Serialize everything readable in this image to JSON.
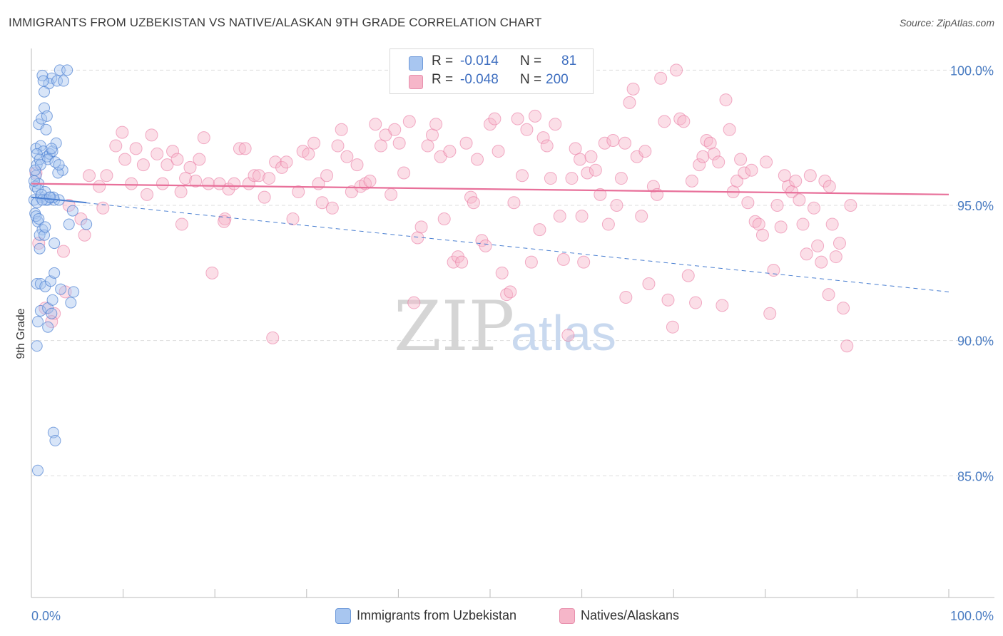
{
  "title": "IMMIGRANTS FROM UZBEKISTAN VS NATIVE/ALASKAN 9TH GRADE CORRELATION CHART",
  "source": "Source: ZipAtlas.com",
  "watermark": {
    "zip": "ZIP",
    "atlas": "atlas"
  },
  "legend_box": {
    "rows": [
      {
        "r_label": "R =",
        "r_value": "-0.014",
        "n_label": "N =",
        "n_value": "81",
        "color": "#a8c6f0"
      },
      {
        "r_label": "R =",
        "r_value": "-0.048",
        "n_label": "N =",
        "n_value": "200",
        "color": "#f6b6c9"
      }
    ]
  },
  "bottom_legend": [
    {
      "label": "Immigrants from Uzbekistan",
      "color": "#a8c6f0"
    },
    {
      "label": "Natives/Alaskans",
      "color": "#f6b6c9"
    }
  ],
  "colors": {
    "blue": "#4a7fd1",
    "blue_fill": "#a8c6f0",
    "pink": "#e8709a",
    "pink_fill": "#f6b6c9",
    "grid": "#dddddd",
    "axis_text": "#4a7cc2"
  },
  "chart_data": {
    "type": "scatter",
    "title": "IMMIGRANTS FROM UZBEKISTAN VS NATIVE/ALASKAN 9TH GRADE CORRELATION CHART",
    "xlabel": "",
    "ylabel": "9th Grade",
    "xlim": [
      0,
      100
    ],
    "ylim": [
      80.5,
      100.8
    ],
    "x_ticks": [
      "0.0%",
      "100.0%"
    ],
    "y_ticks": [
      {
        "value": 100,
        "label": "100.0%"
      },
      {
        "value": 95,
        "label": "95.0%"
      },
      {
        "value": 90,
        "label": "90.0%"
      },
      {
        "value": 85,
        "label": "85.0%"
      }
    ],
    "grid": true,
    "legend_position": "top-center",
    "series": [
      {
        "name": "Immigrants from Uzbekistan",
        "color": "#4a7fd1",
        "trend": {
          "x": [
            0,
            100
          ],
          "y": [
            95.3,
            91.8
          ],
          "style": "dashed"
        },
        "trend_solid": {
          "x": [
            0,
            6
          ],
          "y": [
            95.3,
            95.1
          ]
        },
        "points": [
          [
            0.3,
            95.2
          ],
          [
            0.5,
            96.1
          ],
          [
            0.6,
            96.5
          ],
          [
            0.8,
            95.8
          ],
          [
            1.0,
            95.3
          ],
          [
            0.4,
            94.7
          ],
          [
            0.7,
            94.4
          ],
          [
            1.2,
            94.1
          ],
          [
            0.9,
            93.9
          ],
          [
            1.5,
            95.5
          ],
          [
            1.8,
            95.2
          ],
          [
            2.1,
            95.3
          ],
          [
            2.5,
            95.2
          ],
          [
            3.0,
            95.2
          ],
          [
            0.5,
            97.1
          ],
          [
            1.0,
            97.2
          ],
          [
            1.3,
            97.0
          ],
          [
            1.7,
            96.8
          ],
          [
            2.0,
            96.9
          ],
          [
            2.3,
            97.0
          ],
          [
            2.7,
            97.3
          ],
          [
            0.8,
            98.0
          ],
          [
            1.1,
            98.2
          ],
          [
            1.4,
            98.6
          ],
          [
            1.6,
            97.8
          ],
          [
            2.2,
            99.7
          ],
          [
            1.9,
            99.5
          ],
          [
            1.4,
            99.2
          ],
          [
            1.2,
            99.8
          ],
          [
            2.8,
            99.6
          ],
          [
            3.1,
            100.0
          ],
          [
            3.9,
            100.0
          ],
          [
            0.6,
            96.9
          ],
          [
            0.9,
            96.7
          ],
          [
            1.8,
            96.7
          ],
          [
            2.6,
            96.6
          ],
          [
            3.4,
            96.3
          ],
          [
            2.9,
            96.2
          ],
          [
            0.4,
            95.7
          ],
          [
            0.7,
            95.6
          ],
          [
            1.1,
            95.4
          ],
          [
            1.6,
            95.2
          ],
          [
            2.4,
            95.3
          ],
          [
            0.5,
            94.6
          ],
          [
            0.8,
            94.5
          ],
          [
            3.0,
            96.5
          ],
          [
            4.1,
            94.3
          ],
          [
            4.5,
            94.8
          ],
          [
            6.0,
            94.3
          ],
          [
            1.4,
            93.9
          ],
          [
            2.5,
            93.6
          ],
          [
            0.6,
            92.1
          ],
          [
            1.0,
            92.1
          ],
          [
            1.5,
            92.0
          ],
          [
            2.1,
            92.2
          ],
          [
            2.5,
            92.5
          ],
          [
            3.2,
            91.9
          ],
          [
            4.6,
            91.8
          ],
          [
            4.3,
            91.4
          ],
          [
            1.0,
            91.1
          ],
          [
            1.8,
            91.2
          ],
          [
            2.2,
            91.0
          ],
          [
            0.7,
            90.7
          ],
          [
            1.8,
            90.5
          ],
          [
            0.6,
            89.8
          ],
          [
            2.4,
            86.6
          ],
          [
            2.6,
            86.3
          ],
          [
            0.7,
            85.2
          ],
          [
            0.3,
            95.9
          ],
          [
            0.6,
            95.1
          ],
          [
            1.2,
            95.2
          ],
          [
            2.0,
            95.3
          ],
          [
            1.0,
            96.5
          ],
          [
            1.5,
            94.2
          ],
          [
            0.9,
            93.4
          ],
          [
            2.3,
            91.5
          ],
          [
            1.7,
            98.3
          ],
          [
            2.2,
            97.1
          ],
          [
            1.3,
            99.6
          ],
          [
            3.5,
            99.6
          ],
          [
            0.4,
            96.3
          ]
        ]
      },
      {
        "name": "Natives/Alaskans",
        "color": "#e8709a",
        "trend": {
          "x": [
            0,
            100
          ],
          "y": [
            95.8,
            95.4
          ],
          "style": "solid"
        },
        "points": [
          [
            0.5,
            96.2
          ],
          [
            0.8,
            93.6
          ],
          [
            1.5,
            91.2
          ],
          [
            2.5,
            91.0
          ],
          [
            2.2,
            90.7
          ],
          [
            3.7,
            91.8
          ],
          [
            3.5,
            93.3
          ],
          [
            4.1,
            95.0
          ],
          [
            5.4,
            94.5
          ],
          [
            5.8,
            93.9
          ],
          [
            6.3,
            96.1
          ],
          [
            7.4,
            95.7
          ],
          [
            7.8,
            94.9
          ],
          [
            8.2,
            96.1
          ],
          [
            9.2,
            97.2
          ],
          [
            9.9,
            97.7
          ],
          [
            10.2,
            96.7
          ],
          [
            10.9,
            95.8
          ],
          [
            11.4,
            97.1
          ],
          [
            12.2,
            96.5
          ],
          [
            12.6,
            95.4
          ],
          [
            13.1,
            97.6
          ],
          [
            13.7,
            96.9
          ],
          [
            14.3,
            95.8
          ],
          [
            14.8,
            96.5
          ],
          [
            15.4,
            97.0
          ],
          [
            15.9,
            96.7
          ],
          [
            16.3,
            95.5
          ],
          [
            16.8,
            96.0
          ],
          [
            17.3,
            96.4
          ],
          [
            17.9,
            95.9
          ],
          [
            18.3,
            96.7
          ],
          [
            18.8,
            97.5
          ],
          [
            19.3,
            95.8
          ],
          [
            19.7,
            92.5
          ],
          [
            20.5,
            95.8
          ],
          [
            21.1,
            94.5
          ],
          [
            21.5,
            95.6
          ],
          [
            22.1,
            95.8
          ],
          [
            22.7,
            97.1
          ],
          [
            23.3,
            97.1
          ],
          [
            23.7,
            95.8
          ],
          [
            24.3,
            96.1
          ],
          [
            24.8,
            96.1
          ],
          [
            25.4,
            95.3
          ],
          [
            25.9,
            96.0
          ],
          [
            26.3,
            90.1
          ],
          [
            26.6,
            96.6
          ],
          [
            27.3,
            96.4
          ],
          [
            27.8,
            96.6
          ],
          [
            28.5,
            94.5
          ],
          [
            29.1,
            95.5
          ],
          [
            29.6,
            97.0
          ],
          [
            30.2,
            96.9
          ],
          [
            30.8,
            97.3
          ],
          [
            31.3,
            95.8
          ],
          [
            31.7,
            95.1
          ],
          [
            32.2,
            96.1
          ],
          [
            32.8,
            94.9
          ],
          [
            33.4,
            97.2
          ],
          [
            33.8,
            97.8
          ],
          [
            34.4,
            96.8
          ],
          [
            34.9,
            95.5
          ],
          [
            35.5,
            96.5
          ],
          [
            35.9,
            95.7
          ],
          [
            36.4,
            95.8
          ],
          [
            36.9,
            95.9
          ],
          [
            37.5,
            98.0
          ],
          [
            38.1,
            97.2
          ],
          [
            38.6,
            97.6
          ],
          [
            39.2,
            95.4
          ],
          [
            39.6,
            97.8
          ],
          [
            40.1,
            97.3
          ],
          [
            40.6,
            96.2
          ],
          [
            41.2,
            98.1
          ],
          [
            41.7,
            91.4
          ],
          [
            42.1,
            93.8
          ],
          [
            42.5,
            94.2
          ],
          [
            43.2,
            97.2
          ],
          [
            43.7,
            97.6
          ],
          [
            44.1,
            98.0
          ],
          [
            44.6,
            96.8
          ],
          [
            45.0,
            94.5
          ],
          [
            45.6,
            97.0
          ],
          [
            46.0,
            92.9
          ],
          [
            46.5,
            93.1
          ],
          [
            46.9,
            92.9
          ],
          [
            47.4,
            97.3
          ],
          [
            47.9,
            95.3
          ],
          [
            48.2,
            95.1
          ],
          [
            48.6,
            96.7
          ],
          [
            49.1,
            93.7
          ],
          [
            49.5,
            93.5
          ],
          [
            50.0,
            98.0
          ],
          [
            50.5,
            98.2
          ],
          [
            50.9,
            97.0
          ],
          [
            51.3,
            92.5
          ],
          [
            51.8,
            91.7
          ],
          [
            52.2,
            91.8
          ],
          [
            52.6,
            95.1
          ],
          [
            53.0,
            98.2
          ],
          [
            53.5,
            96.1
          ],
          [
            54.0,
            97.8
          ],
          [
            54.5,
            92.9
          ],
          [
            54.9,
            98.3
          ],
          [
            55.4,
            94.1
          ],
          [
            55.8,
            97.5
          ],
          [
            56.2,
            97.2
          ],
          [
            56.6,
            96.0
          ],
          [
            57.1,
            98.0
          ],
          [
            57.6,
            94.6
          ],
          [
            58.0,
            93.0
          ],
          [
            58.5,
            90.2
          ],
          [
            58.9,
            96.0
          ],
          [
            59.3,
            97.1
          ],
          [
            59.8,
            96.7
          ],
          [
            60.2,
            92.9
          ],
          [
            60.6,
            96.2
          ],
          [
            61.0,
            96.8
          ],
          [
            61.5,
            96.3
          ],
          [
            62.0,
            95.4
          ],
          [
            62.5,
            97.3
          ],
          [
            62.9,
            94.3
          ],
          [
            63.4,
            97.4
          ],
          [
            63.8,
            95.0
          ],
          [
            64.3,
            96.0
          ],
          [
            64.7,
            97.3
          ],
          [
            65.2,
            98.8
          ],
          [
            65.6,
            99.3
          ],
          [
            66.0,
            96.8
          ],
          [
            66.5,
            94.6
          ],
          [
            66.9,
            97.0
          ],
          [
            67.3,
            92.1
          ],
          [
            67.8,
            95.7
          ],
          [
            68.2,
            95.4
          ],
          [
            68.6,
            99.7
          ],
          [
            69.0,
            98.1
          ],
          [
            69.4,
            91.5
          ],
          [
            69.9,
            90.5
          ],
          [
            70.3,
            100.0
          ],
          [
            70.7,
            98.2
          ],
          [
            71.1,
            98.1
          ],
          [
            71.6,
            92.4
          ],
          [
            72.0,
            95.9
          ],
          [
            72.4,
            91.4
          ],
          [
            72.8,
            96.5
          ],
          [
            73.2,
            96.8
          ],
          [
            73.6,
            97.4
          ],
          [
            74.0,
            97.3
          ],
          [
            74.4,
            96.9
          ],
          [
            74.9,
            96.6
          ],
          [
            75.3,
            91.3
          ],
          [
            75.7,
            98.9
          ],
          [
            76.1,
            97.8
          ],
          [
            76.5,
            95.5
          ],
          [
            76.9,
            95.9
          ],
          [
            77.3,
            96.7
          ],
          [
            77.7,
            96.2
          ],
          [
            78.1,
            95.1
          ],
          [
            78.5,
            96.3
          ],
          [
            78.9,
            94.4
          ],
          [
            79.3,
            94.3
          ],
          [
            79.7,
            93.9
          ],
          [
            80.1,
            96.6
          ],
          [
            80.5,
            91.0
          ],
          [
            80.9,
            92.6
          ],
          [
            81.3,
            95.0
          ],
          [
            81.7,
            94.2
          ],
          [
            82.1,
            96.1
          ],
          [
            82.5,
            95.7
          ],
          [
            82.9,
            95.5
          ],
          [
            83.3,
            95.9
          ],
          [
            83.7,
            95.2
          ],
          [
            84.1,
            94.3
          ],
          [
            84.5,
            93.2
          ],
          [
            84.9,
            96.1
          ],
          [
            85.3,
            94.9
          ],
          [
            85.7,
            93.5
          ],
          [
            86.1,
            92.9
          ],
          [
            86.5,
            95.9
          ],
          [
            86.9,
            91.7
          ],
          [
            87.3,
            94.3
          ],
          [
            87.7,
            93.1
          ],
          [
            88.1,
            93.6
          ],
          [
            88.5,
            91.2
          ],
          [
            88.9,
            89.8
          ],
          [
            89.3,
            95.0
          ],
          [
            21.0,
            94.4
          ],
          [
            16.4,
            94.3
          ],
          [
            60.0,
            94.6
          ],
          [
            64.8,
            91.6
          ],
          [
            87.0,
            95.7
          ]
        ]
      }
    ]
  }
}
